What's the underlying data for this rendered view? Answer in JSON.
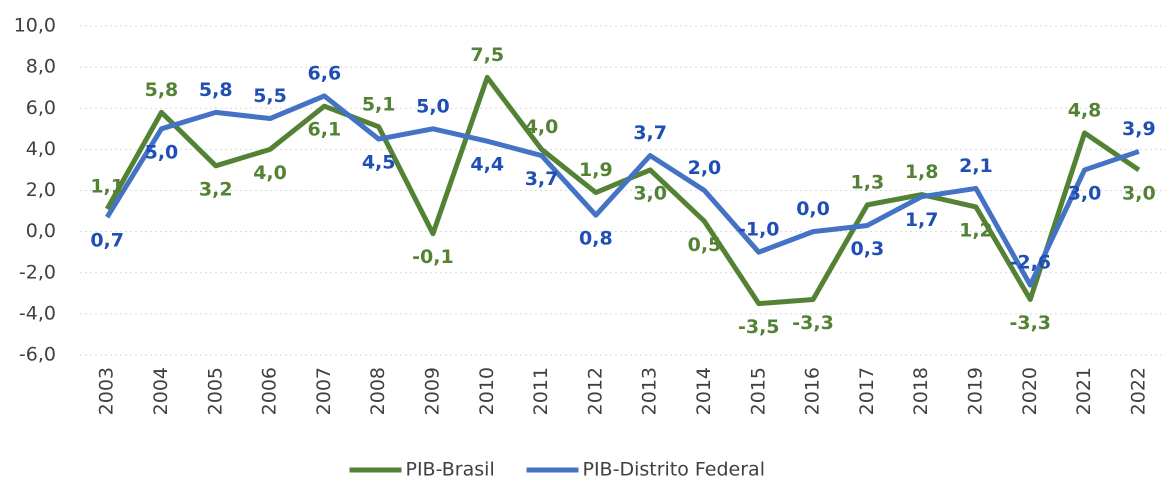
{
  "chart_data": {
    "type": "line",
    "categories": [
      "2003",
      "2004",
      "2005",
      "2006",
      "2007",
      "2008",
      "2009",
      "2010",
      "2011",
      "2012",
      "2013",
      "2014",
      "2015",
      "2016",
      "2017",
      "2018",
      "2019",
      "2020",
      "2021",
      "2022"
    ],
    "series": [
      {
        "name": "PIB-Brasil",
        "color": "#548235",
        "label_color": "#548235",
        "values": [
          1.1,
          5.8,
          3.2,
          4.0,
          6.1,
          5.1,
          -0.1,
          7.5,
          4.0,
          1.9,
          3.0,
          0.5,
          -3.5,
          -3.3,
          1.3,
          1.8,
          1.2,
          -3.3,
          4.8,
          3.0
        ],
        "value_labels": [
          "1,1",
          "5,8",
          "3,2",
          "4,0",
          "6,1",
          "5,1",
          "-0,1",
          "7,5",
          "4,0",
          "1,9",
          "3,0",
          "0,5",
          "-3,5",
          "-3,3",
          "1,3",
          "1,8",
          "1,2",
          "-3,3",
          "4,8",
          "3,0"
        ]
      },
      {
        "name": "PIB-Distrito Federal",
        "color": "#4472c4",
        "label_color": "#1f4eb4",
        "values": [
          0.7,
          5.0,
          5.8,
          5.5,
          6.6,
          4.5,
          5.0,
          4.4,
          3.7,
          0.8,
          3.7,
          2.0,
          -1.0,
          0.0,
          0.3,
          1.7,
          2.1,
          -2.6,
          3.0,
          3.9
        ],
        "value_labels": [
          "0,7",
          "5,0",
          "5,8",
          "5,5",
          "6,6",
          "4,5",
          "5,0",
          "4,4",
          "3,7",
          "0,8",
          "3,7",
          "2,0",
          "-1,0",
          "0,0",
          "0,3",
          "1,7",
          "2,1",
          "-2,6",
          "3,0",
          "3,9"
        ]
      }
    ],
    "ylim": [
      -6,
      10
    ],
    "yticks": [
      {
        "value": -6,
        "label": "-6,0"
      },
      {
        "value": -4,
        "label": "-4,0"
      },
      {
        "value": -2,
        "label": "-2,0"
      },
      {
        "value": 0,
        "label": "0,0"
      },
      {
        "value": 2,
        "label": "2,0"
      },
      {
        "value": 4,
        "label": "4,0"
      },
      {
        "value": 6,
        "label": "6,0"
      },
      {
        "value": 8,
        "label": "8,0"
      },
      {
        "value": 10,
        "label": "10,0"
      }
    ],
    "grid": true,
    "legend": "bottom"
  }
}
